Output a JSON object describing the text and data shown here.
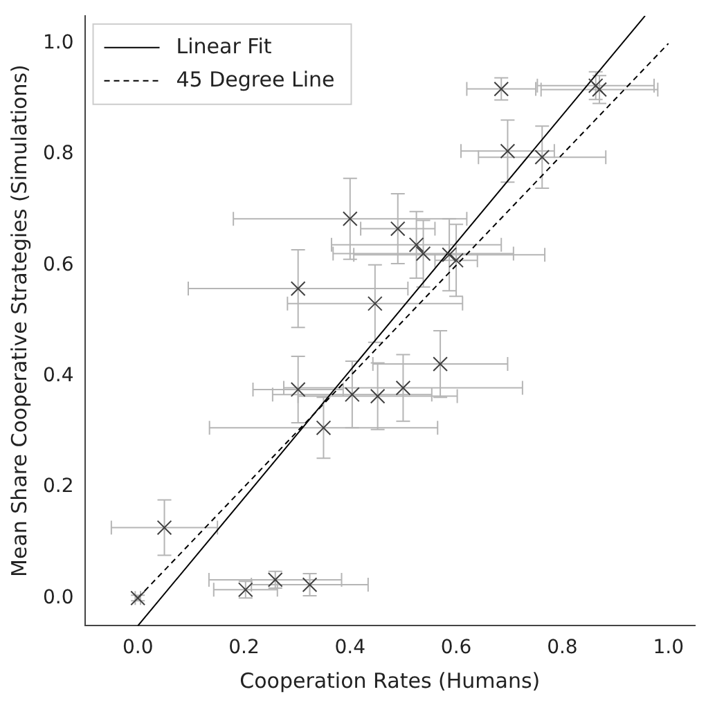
{
  "chart_data": {
    "type": "scatter",
    "xlabel": "Cooperation Rates (Humans)",
    "ylabel": "Mean Share Cooperative Strategies (Simulations)",
    "xlim": [
      -0.1,
      1.05
    ],
    "ylim": [
      -0.05,
      1.05
    ],
    "xticks": [
      {
        "value": 0,
        "label": "0.0"
      },
      {
        "value": 0.2,
        "label": "0.2"
      },
      {
        "value": 0.4,
        "label": "0.4"
      },
      {
        "value": 0.6,
        "label": "0.6"
      },
      {
        "value": 0.8,
        "label": "0.8"
      },
      {
        "value": 1,
        "label": "1.0"
      }
    ],
    "yticks": [
      {
        "value": 0,
        "label": "0.0"
      },
      {
        "value": 0.2,
        "label": "0.2"
      },
      {
        "value": 0.4,
        "label": "0.4"
      },
      {
        "value": 0.6,
        "label": "0.6"
      },
      {
        "value": 0.8,
        "label": "0.8"
      },
      {
        "value": 1,
        "label": "1.0"
      }
    ],
    "grid": false,
    "legend": "top left",
    "series": [
      {
        "color": "#404040",
        "marker": "cross",
        "x": [
          0,
          0.05,
          0.203,
          0.259,
          0.324,
          0.35,
          0.302,
          0.404,
          0.452,
          0.5,
          0.57,
          0.302,
          0.447,
          0.4,
          0.49,
          0.525,
          0.538,
          0.587,
          0.6,
          0.697,
          0.762,
          0.685,
          0.863,
          0.87
        ],
        "values": [
          0,
          0.127,
          0.015,
          0.033,
          0.024,
          0.307,
          0.376,
          0.367,
          0.364,
          0.379,
          0.422,
          0.558,
          0.531,
          0.684,
          0.666,
          0.637,
          0.621,
          0.619,
          0.609,
          0.806,
          0.795,
          0.918,
          0.924,
          0.917
        ],
        "errors": [
          0.005,
          0.05,
          0.015,
          0.015,
          0.02,
          0.055,
          0.06,
          0.06,
          0.06,
          0.06,
          0.06,
          0.07,
          0.07,
          0.073,
          0.063,
          0.06,
          0.06,
          0.065,
          0.065,
          0.056,
          0.056,
          0.02,
          0.025,
          0.025
        ],
        "xerrors": [
          0.005,
          0.1,
          0.06,
          0.125,
          0.11,
          0.215,
          0.085,
          0.15,
          0.15,
          0.225,
          0.127,
          0.207,
          0.165,
          0.22,
          0.07,
          0.16,
          0.17,
          0.18,
          0.04,
          0.088,
          0.12,
          0.065,
          0.11,
          0.11
        ]
      },
      {
        "type": "line",
        "name": "Linear Fit",
        "color": "#000000",
        "line_style": "solid",
        "x": [
          0,
          0.956
        ],
        "values": [
          -0.05,
          1.05
        ]
      },
      {
        "type": "line",
        "name": "45 Degree Line",
        "color": "#000000",
        "line_style": "dashed",
        "x": [
          0,
          1
        ],
        "values": [
          0,
          1
        ]
      }
    ]
  }
}
